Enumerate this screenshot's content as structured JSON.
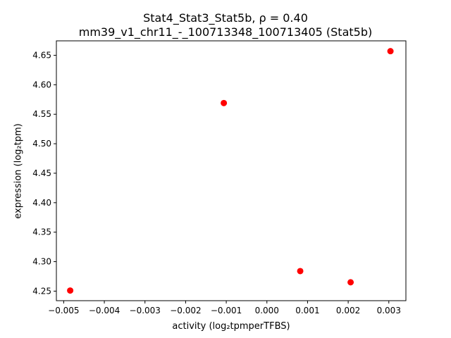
{
  "chart_data": {
    "type": "scatter",
    "title_line1": "Stat4_Stat3_Stat5b, ρ = 0.40",
    "title_line2": "mm39_v1_chr11_-_100713348_100713405 (Stat5b)",
    "xlabel": "activity (log₂tpmperTFBS)",
    "ylabel": "expression (log₂tpm)",
    "xlim": [
      -0.00518,
      0.00342
    ],
    "ylim": [
      4.2338,
      4.6745
    ],
    "xticks": [
      -0.005,
      -0.004,
      -0.003,
      -0.002,
      -0.001,
      0.0,
      0.001,
      0.002,
      0.003
    ],
    "xtick_labels": [
      "−0.005",
      "−0.004",
      "−0.003",
      "−0.002",
      "−0.001",
      "0.000",
      "0.001",
      "0.002",
      "0.003"
    ],
    "yticks": [
      4.25,
      4.3,
      4.35,
      4.4,
      4.45,
      4.5,
      4.55,
      4.6,
      4.65
    ],
    "ytick_labels": [
      "4.25",
      "4.30",
      "4.35",
      "4.40",
      "4.45",
      "4.50",
      "4.55",
      "4.60",
      "4.65"
    ],
    "grid": false,
    "marker_color": "#ff0000",
    "points": [
      {
        "x": -0.00484,
        "y": 4.251
      },
      {
        "x": -0.00106,
        "y": 4.569
      },
      {
        "x": 0.00082,
        "y": 4.284
      },
      {
        "x": 0.00206,
        "y": 4.265
      },
      {
        "x": 0.00304,
        "y": 4.657
      }
    ]
  }
}
